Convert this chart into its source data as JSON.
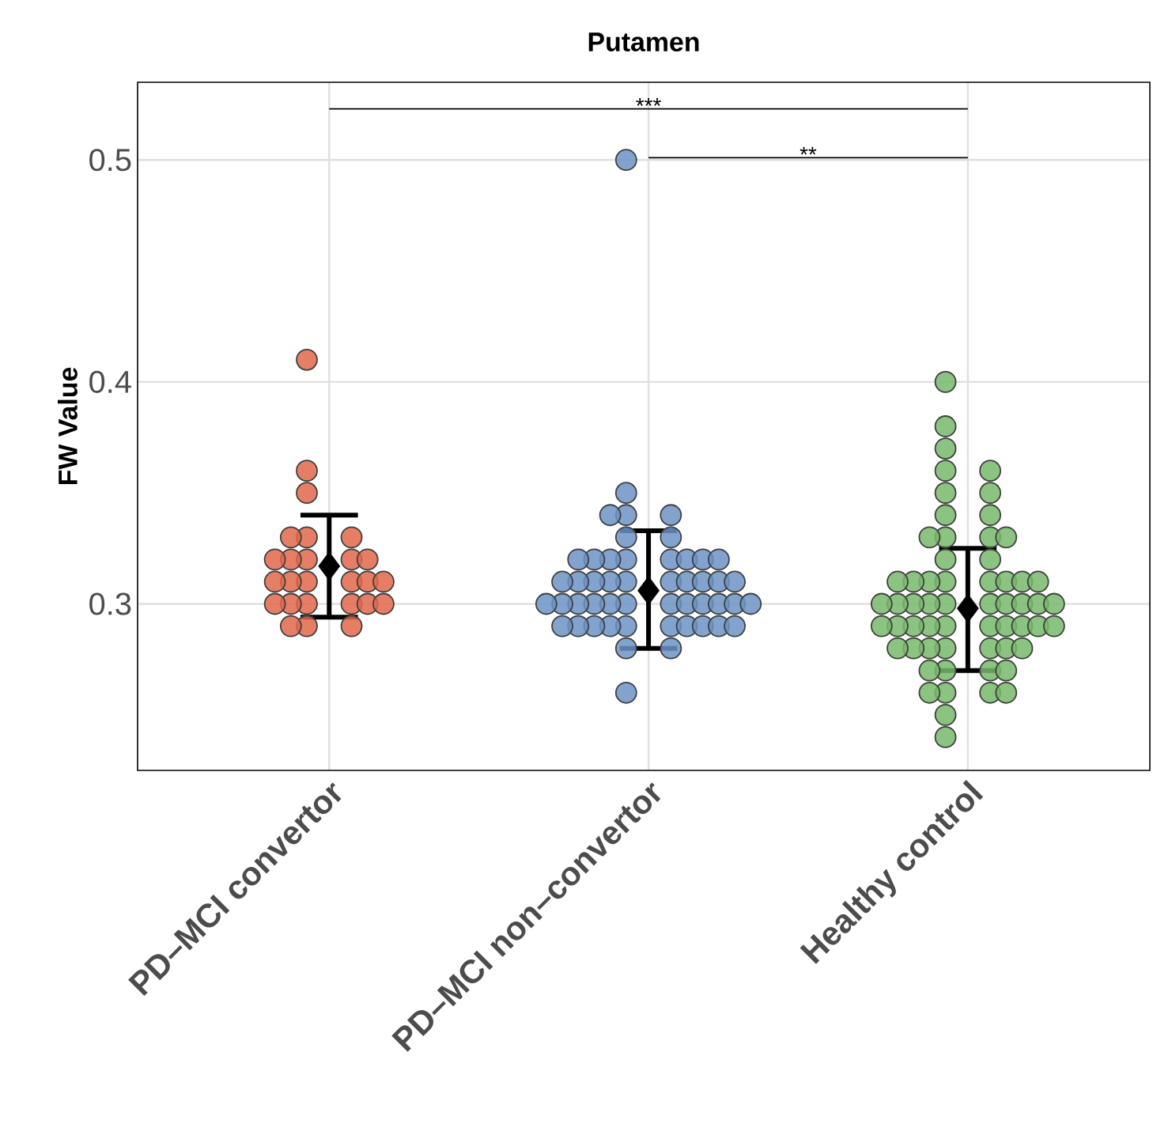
{
  "chart_data": {
    "type": "scatter",
    "title": "Putamen",
    "ylabel": "FW Value",
    "categories": [
      "PD–MCI convertor",
      "PD–MCI non–convertor",
      "Healthy control"
    ],
    "ylim": [
      0.225,
      0.535
    ],
    "yticks": [
      0.3,
      0.4,
      0.5
    ],
    "grid": true,
    "legend": false,
    "series": [
      {
        "color": "#e2674a",
        "marker": "circle",
        "x": [
          "PD–MCI convertor",
          "PD–MCI convertor",
          "PD–MCI convertor",
          "PD–MCI convertor",
          "PD–MCI convertor",
          "PD–MCI convertor",
          "PD–MCI convertor",
          "PD–MCI convertor",
          "PD–MCI convertor",
          "PD–MCI convertor",
          "PD–MCI convertor",
          "PD–MCI convertor",
          "PD–MCI convertor",
          "PD–MCI convertor",
          "PD–MCI convertor",
          "PD–MCI convertor",
          "PD–MCI convertor",
          "PD–MCI convertor",
          "PD–MCI convertor",
          "PD–MCI convertor",
          "PD–MCI convertor",
          "PD–MCI convertor",
          "PD–MCI convertor",
          "PD–MCI convertor",
          "PD–MCI convertor",
          "PD–MCI convertor"
        ],
        "values": [
          0.41,
          0.36,
          0.35,
          0.33,
          0.33,
          0.33,
          0.32,
          0.32,
          0.32,
          0.32,
          0.32,
          0.31,
          0.31,
          0.31,
          0.31,
          0.31,
          0.31,
          0.3,
          0.3,
          0.3,
          0.3,
          0.3,
          0.29,
          0.29,
          0.29,
          0.3
        ]
      },
      {
        "color": "#6b93c6",
        "marker": "circle",
        "x": [
          "PD–MCI non–convertor",
          "PD–MCI non–convertor",
          "PD–MCI non–convertor",
          "PD–MCI non–convertor",
          "PD–MCI non–convertor",
          "PD–MCI non–convertor",
          "PD–MCI non–convertor",
          "PD–MCI non–convertor",
          "PD–MCI non–convertor",
          "PD–MCI non–convertor",
          "PD–MCI non–convertor",
          "PD–MCI non–convertor",
          "PD–MCI non–convertor",
          "PD–MCI non–convertor",
          "PD–MCI non–convertor",
          "PD–MCI non–convertor",
          "PD–MCI non–convertor",
          "PD–MCI non–convertor",
          "PD–MCI non–convertor",
          "PD–MCI non–convertor",
          "PD–MCI non–convertor",
          "PD–MCI non–convertor",
          "PD–MCI non–convertor",
          "PD–MCI non–convertor",
          "PD–MCI non–convertor",
          "PD–MCI non–convertor",
          "PD–MCI non–convertor",
          "PD–MCI non–convertor",
          "PD–MCI non–convertor",
          "PD–MCI non–convertor",
          "PD–MCI non–convertor",
          "PD–MCI non–convertor",
          "PD–MCI non–convertor",
          "PD–MCI non–convertor",
          "PD–MCI non–convertor",
          "PD–MCI non–convertor",
          "PD–MCI non–convertor",
          "PD–MCI non–convertor",
          "PD–MCI non–convertor",
          "PD–MCI non–convertor",
          "PD–MCI non–convertor",
          "PD–MCI non–convertor",
          "PD–MCI non–convertor",
          "PD–MCI non–convertor",
          "PD–MCI non–convertor",
          "PD–MCI non–convertor",
          "PD–MCI non–convertor",
          "PD–MCI non–convertor",
          "PD–MCI non–convertor",
          "PD–MCI non–convertor"
        ],
        "values": [
          0.5,
          0.35,
          0.34,
          0.34,
          0.34,
          0.33,
          0.33,
          0.32,
          0.32,
          0.32,
          0.32,
          0.32,
          0.32,
          0.32,
          0.32,
          0.31,
          0.31,
          0.31,
          0.31,
          0.31,
          0.31,
          0.31,
          0.31,
          0.31,
          0.31,
          0.3,
          0.3,
          0.3,
          0.3,
          0.3,
          0.3,
          0.3,
          0.3,
          0.3,
          0.3,
          0.3,
          0.3,
          0.29,
          0.29,
          0.29,
          0.29,
          0.29,
          0.29,
          0.29,
          0.29,
          0.29,
          0.29,
          0.28,
          0.28,
          0.26
        ]
      },
      {
        "color": "#77b86a",
        "marker": "circle",
        "x": [
          "Healthy control",
          "Healthy control",
          "Healthy control",
          "Healthy control",
          "Healthy control",
          "Healthy control",
          "Healthy control",
          "Healthy control",
          "Healthy control",
          "Healthy control",
          "Healthy control",
          "Healthy control",
          "Healthy control",
          "Healthy control",
          "Healthy control",
          "Healthy control",
          "Healthy control",
          "Healthy control",
          "Healthy control",
          "Healthy control",
          "Healthy control",
          "Healthy control",
          "Healthy control",
          "Healthy control",
          "Healthy control",
          "Healthy control",
          "Healthy control",
          "Healthy control",
          "Healthy control",
          "Healthy control",
          "Healthy control",
          "Healthy control",
          "Healthy control",
          "Healthy control",
          "Healthy control",
          "Healthy control",
          "Healthy control",
          "Healthy control",
          "Healthy control",
          "Healthy control",
          "Healthy control",
          "Healthy control",
          "Healthy control",
          "Healthy control",
          "Healthy control",
          "Healthy control",
          "Healthy control",
          "Healthy control",
          "Healthy control",
          "Healthy control",
          "Healthy control",
          "Healthy control",
          "Healthy control",
          "Healthy control",
          "Healthy control",
          "Healthy control",
          "Healthy control",
          "Healthy control",
          "Healthy control",
          "Healthy control"
        ],
        "values": [
          0.4,
          0.38,
          0.37,
          0.36,
          0.36,
          0.35,
          0.35,
          0.34,
          0.34,
          0.33,
          0.33,
          0.33,
          0.33,
          0.32,
          0.32,
          0.31,
          0.31,
          0.31,
          0.31,
          0.31,
          0.31,
          0.31,
          0.31,
          0.3,
          0.3,
          0.3,
          0.3,
          0.3,
          0.3,
          0.3,
          0.3,
          0.3,
          0.3,
          0.29,
          0.29,
          0.29,
          0.29,
          0.29,
          0.29,
          0.29,
          0.29,
          0.29,
          0.29,
          0.28,
          0.28,
          0.28,
          0.28,
          0.28,
          0.28,
          0.28,
          0.27,
          0.27,
          0.27,
          0.27,
          0.26,
          0.26,
          0.26,
          0.26,
          0.25,
          0.24
        ]
      },
      {
        "color": "#000000",
        "marker": "diamond",
        "x": [
          "PD–MCI convertor",
          "PD–MCI non–convertor",
          "Healthy control"
        ],
        "values": [
          0.317,
          0.306,
          0.298
        ],
        "errors": [
          [
            0.294,
            0.34
          ],
          [
            0.28,
            0.333
          ],
          [
            0.27,
            0.325
          ]
        ]
      }
    ],
    "annotations": [
      "***",
      "**"
    ]
  }
}
